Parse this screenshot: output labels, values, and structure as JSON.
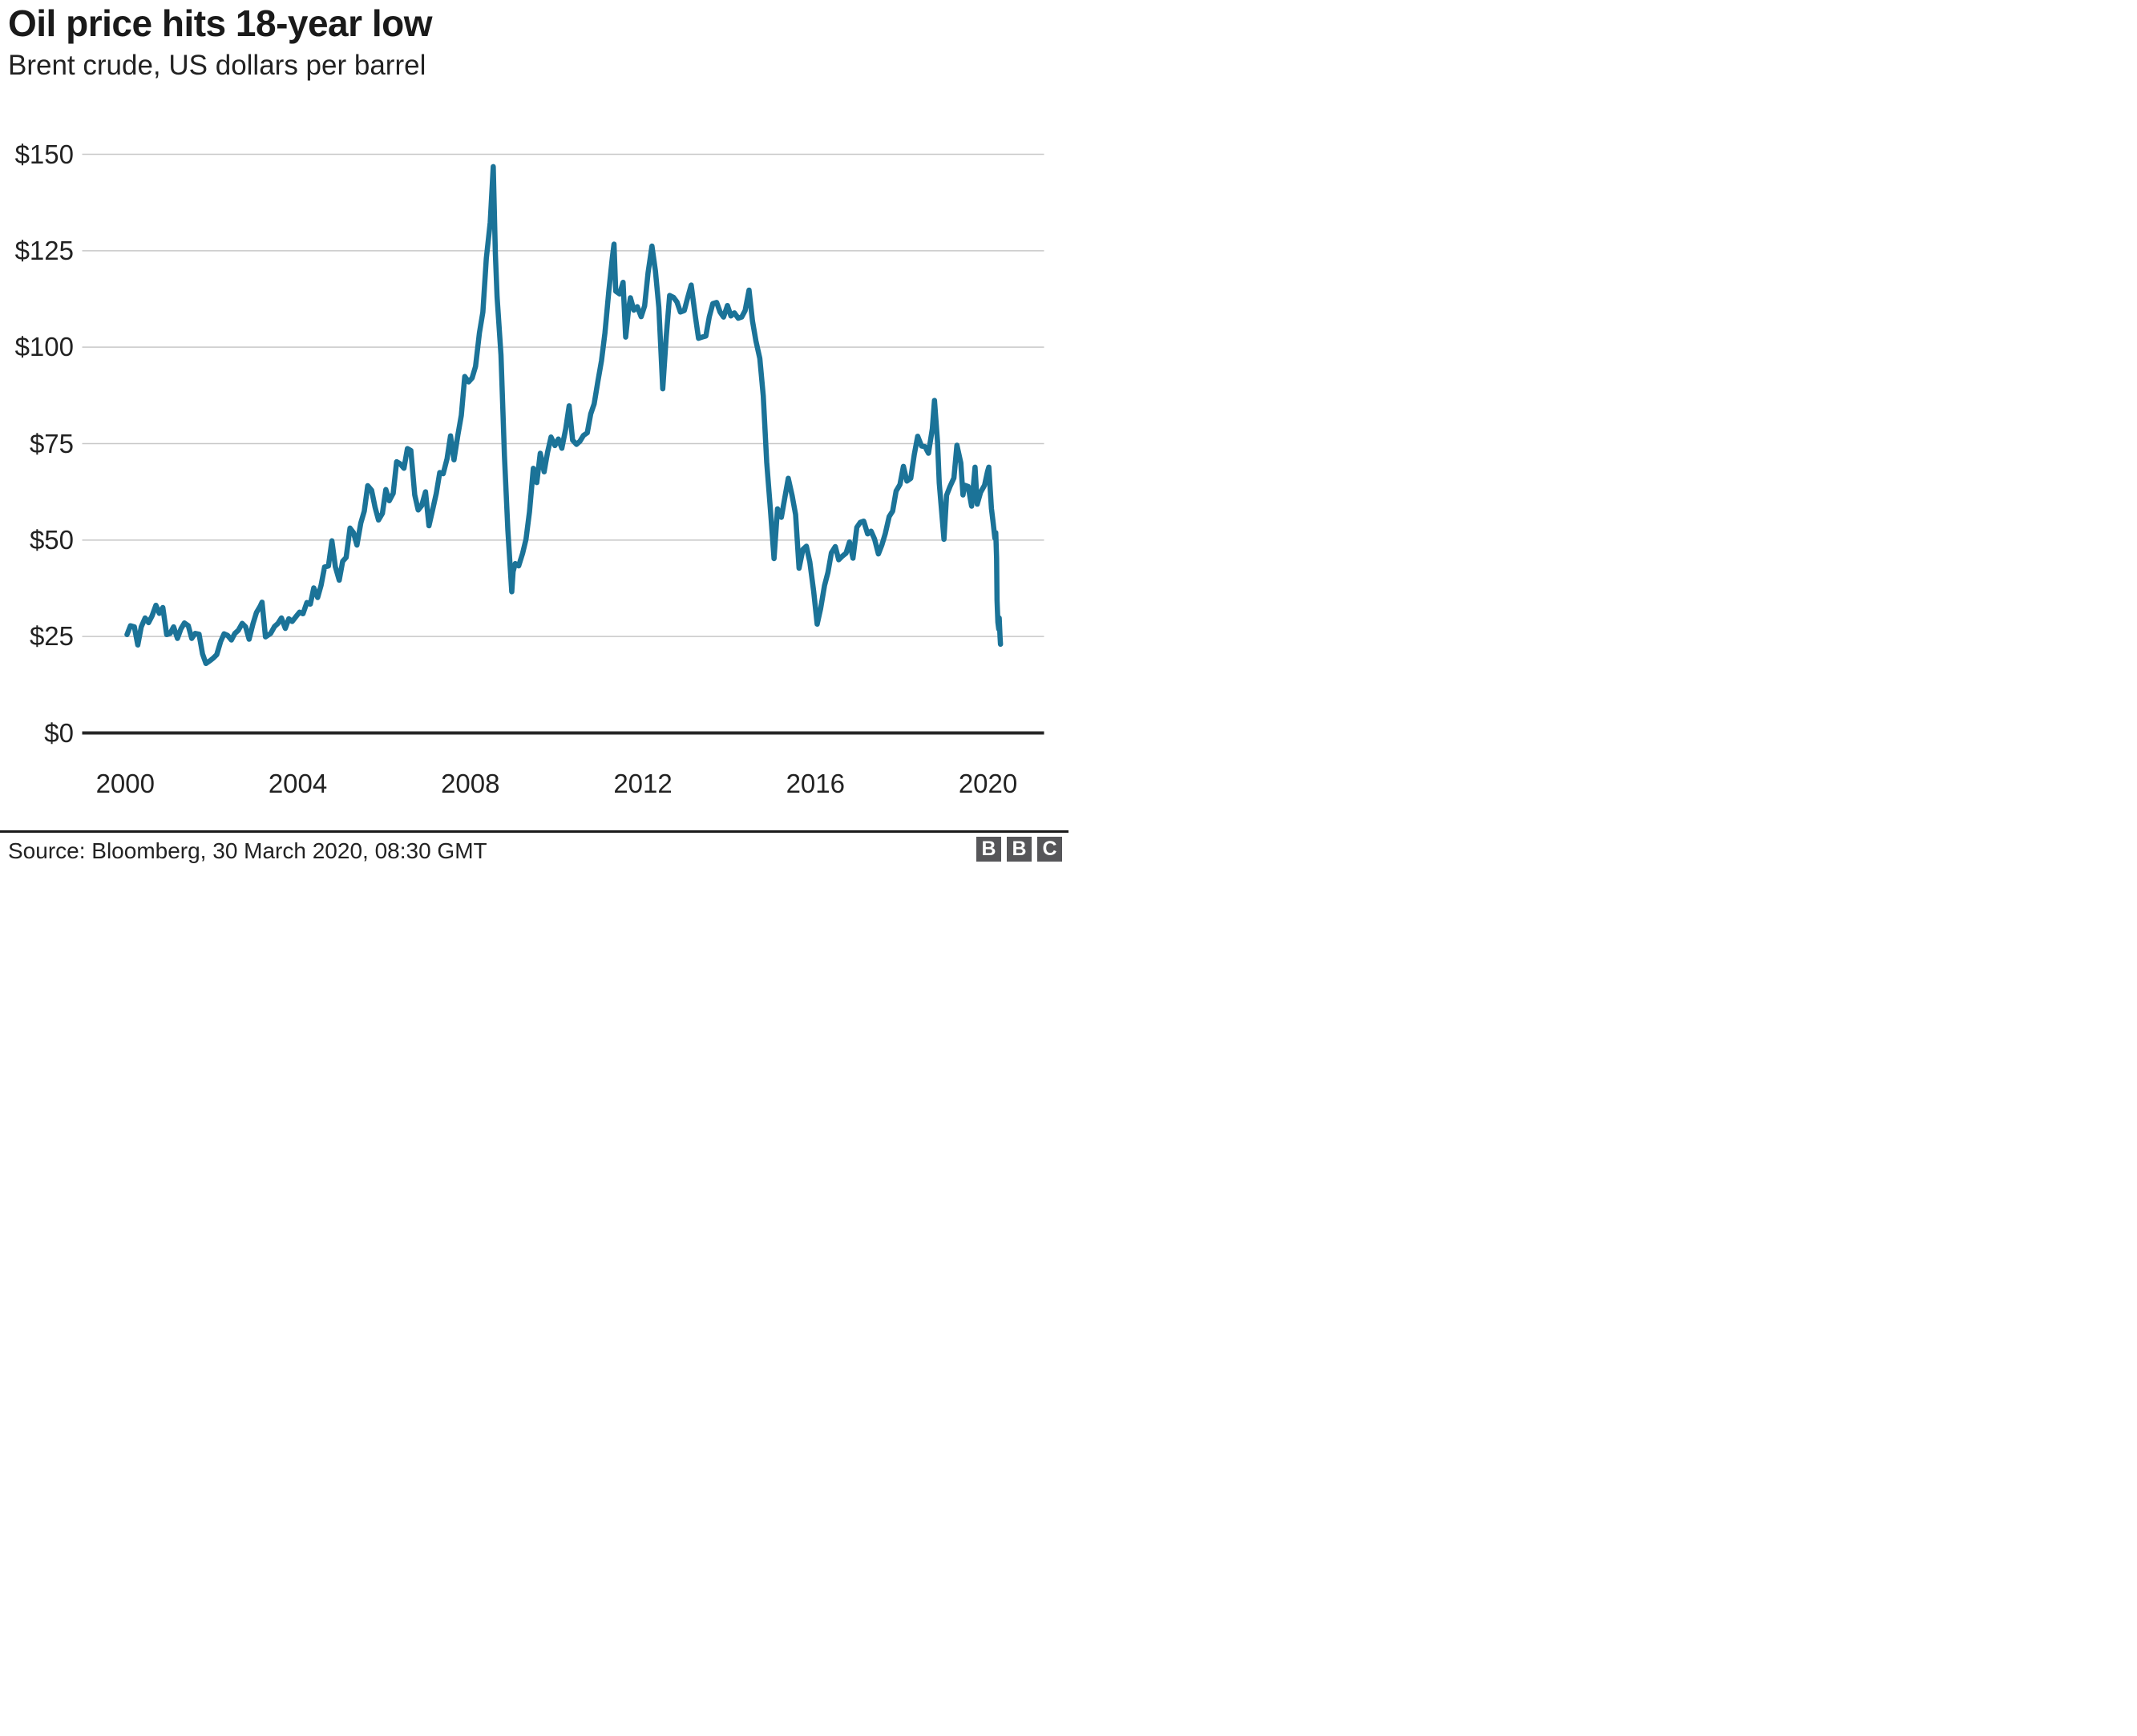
{
  "header": {
    "title": "Oil price hits 18-year low",
    "subtitle": "Brent crude, US dollars per barrel"
  },
  "footer": {
    "source": "Source: Bloomberg, 30 March 2020, 08:30 GMT",
    "logo_letters": [
      "B",
      "B",
      "C"
    ]
  },
  "colors": {
    "line": "#1B7398",
    "grid": "#C8C8C8",
    "axis": "#262626",
    "text": "#222222",
    "logo_gray": "#565659",
    "background": "#FFFFFF"
  },
  "chart_data": {
    "type": "line",
    "title": "Oil price hits 18-year low",
    "subtitle": "Brent crude, US dollars per barrel",
    "series_name": "Brent crude spot price, US dollars per barrel",
    "grid": "horizontal",
    "legend": "none",
    "xlim": [
      1999.0,
      2021.3
    ],
    "ylim": [
      0,
      150
    ],
    "yticks": [
      {
        "label": "$0",
        "value": 0
      },
      {
        "label": "$25",
        "value": 25
      },
      {
        "label": "$50",
        "value": 50
      },
      {
        "label": "$75",
        "value": 75
      },
      {
        "label": "$100",
        "value": 100
      },
      {
        "label": "$125",
        "value": 125
      },
      {
        "label": "$150",
        "value": 150
      }
    ],
    "xticks": [
      {
        "label": "2000",
        "value": 2000
      },
      {
        "label": "2004",
        "value": 2004
      },
      {
        "label": "2008",
        "value": 2008
      },
      {
        "label": "2012",
        "value": 2012
      },
      {
        "label": "2016",
        "value": 2016
      },
      {
        "label": "2020",
        "value": 2020
      }
    ],
    "points": [
      [
        2000.04,
        25.5
      ],
      [
        2000.12,
        27.8
      ],
      [
        2000.21,
        27.5
      ],
      [
        2000.29,
        22.8
      ],
      [
        2000.37,
        27.5
      ],
      [
        2000.46,
        29.8
      ],
      [
        2000.54,
        28.6
      ],
      [
        2000.62,
        30.3
      ],
      [
        2000.71,
        33.1
      ],
      [
        2000.79,
        31.0
      ],
      [
        2000.87,
        32.5
      ],
      [
        2000.96,
        25.5
      ],
      [
        2001.04,
        25.8
      ],
      [
        2001.12,
        27.5
      ],
      [
        2001.21,
        24.5
      ],
      [
        2001.29,
        27.0
      ],
      [
        2001.37,
        28.5
      ],
      [
        2001.46,
        27.8
      ],
      [
        2001.54,
        24.5
      ],
      [
        2001.62,
        25.8
      ],
      [
        2001.71,
        25.6
      ],
      [
        2001.79,
        20.5
      ],
      [
        2001.87,
        18.0
      ],
      [
        2001.96,
        18.7
      ],
      [
        2002.04,
        19.4
      ],
      [
        2002.12,
        20.3
      ],
      [
        2002.21,
        23.7
      ],
      [
        2002.29,
        25.7
      ],
      [
        2002.37,
        25.3
      ],
      [
        2002.46,
        24.1
      ],
      [
        2002.54,
        25.8
      ],
      [
        2002.62,
        26.6
      ],
      [
        2002.71,
        28.4
      ],
      [
        2002.79,
        27.5
      ],
      [
        2002.87,
        24.3
      ],
      [
        2002.96,
        28.3
      ],
      [
        2003.04,
        31.2
      ],
      [
        2003.12,
        32.7
      ],
      [
        2003.17,
        33.9
      ],
      [
        2003.25,
        24.9
      ],
      [
        2003.37,
        25.8
      ],
      [
        2003.46,
        27.6
      ],
      [
        2003.54,
        28.4
      ],
      [
        2003.62,
        29.8
      ],
      [
        2003.71,
        27.1
      ],
      [
        2003.79,
        29.6
      ],
      [
        2003.87,
        28.9
      ],
      [
        2003.96,
        30.2
      ],
      [
        2004.04,
        31.3
      ],
      [
        2004.12,
        30.9
      ],
      [
        2004.21,
        33.8
      ],
      [
        2004.29,
        33.4
      ],
      [
        2004.37,
        37.6
      ],
      [
        2004.46,
        35.1
      ],
      [
        2004.54,
        38.3
      ],
      [
        2004.62,
        43.0
      ],
      [
        2004.71,
        43.3
      ],
      [
        2004.79,
        49.8
      ],
      [
        2004.87,
        43.1
      ],
      [
        2004.96,
        39.6
      ],
      [
        2005.04,
        44.5
      ],
      [
        2005.12,
        45.5
      ],
      [
        2005.21,
        53.1
      ],
      [
        2005.29,
        51.9
      ],
      [
        2005.37,
        48.7
      ],
      [
        2005.46,
        54.4
      ],
      [
        2005.54,
        57.5
      ],
      [
        2005.62,
        64.1
      ],
      [
        2005.71,
        62.9
      ],
      [
        2005.79,
        58.5
      ],
      [
        2005.87,
        55.2
      ],
      [
        2005.96,
        56.9
      ],
      [
        2006.04,
        63.1
      ],
      [
        2006.12,
        60.2
      ],
      [
        2006.21,
        62.1
      ],
      [
        2006.29,
        70.3
      ],
      [
        2006.37,
        69.8
      ],
      [
        2006.46,
        68.6
      ],
      [
        2006.54,
        73.7
      ],
      [
        2006.62,
        73.2
      ],
      [
        2006.71,
        61.7
      ],
      [
        2006.79,
        57.8
      ],
      [
        2006.87,
        58.9
      ],
      [
        2006.96,
        62.5
      ],
      [
        2007.04,
        53.7
      ],
      [
        2007.12,
        57.6
      ],
      [
        2007.21,
        62.1
      ],
      [
        2007.29,
        67.5
      ],
      [
        2007.37,
        67.2
      ],
      [
        2007.46,
        71.1
      ],
      [
        2007.54,
        77.0
      ],
      [
        2007.62,
        70.8
      ],
      [
        2007.71,
        77.2
      ],
      [
        2007.79,
        82.3
      ],
      [
        2007.87,
        92.4
      ],
      [
        2007.96,
        91.0
      ],
      [
        2008.04,
        92.0
      ],
      [
        2008.12,
        95.0
      ],
      [
        2008.21,
        103.7
      ],
      [
        2008.29,
        109.1
      ],
      [
        2008.37,
        123.0
      ],
      [
        2008.46,
        132.3
      ],
      [
        2008.53,
        146.8
      ],
      [
        2008.58,
        124.2
      ],
      [
        2008.62,
        113.0
      ],
      [
        2008.71,
        98.0
      ],
      [
        2008.79,
        71.9
      ],
      [
        2008.87,
        52.5
      ],
      [
        2008.96,
        36.6
      ],
      [
        2008.99,
        41.8
      ],
      [
        2009.04,
        43.9
      ],
      [
        2009.12,
        43.3
      ],
      [
        2009.21,
        46.5
      ],
      [
        2009.29,
        50.2
      ],
      [
        2009.37,
        57.3
      ],
      [
        2009.46,
        68.6
      ],
      [
        2009.54,
        64.9
      ],
      [
        2009.62,
        72.5
      ],
      [
        2009.71,
        67.7
      ],
      [
        2009.79,
        72.8
      ],
      [
        2009.87,
        76.7
      ],
      [
        2009.96,
        74.5
      ],
      [
        2010.04,
        76.2
      ],
      [
        2010.12,
        73.8
      ],
      [
        2010.21,
        78.8
      ],
      [
        2010.29,
        84.8
      ],
      [
        2010.37,
        75.9
      ],
      [
        2010.46,
        74.8
      ],
      [
        2010.54,
        75.6
      ],
      [
        2010.62,
        77.1
      ],
      [
        2010.71,
        77.8
      ],
      [
        2010.79,
        82.7
      ],
      [
        2010.87,
        85.3
      ],
      [
        2010.96,
        91.4
      ],
      [
        2011.04,
        96.5
      ],
      [
        2011.12,
        103.7
      ],
      [
        2011.21,
        114.6
      ],
      [
        2011.29,
        123.1
      ],
      [
        2011.33,
        126.7
      ],
      [
        2011.37,
        114.5
      ],
      [
        2011.46,
        113.8
      ],
      [
        2011.54,
        116.8
      ],
      [
        2011.6,
        102.6
      ],
      [
        2011.67,
        110.1
      ],
      [
        2011.71,
        112.8
      ],
      [
        2011.79,
        109.6
      ],
      [
        2011.87,
        110.5
      ],
      [
        2011.96,
        107.9
      ],
      [
        2012.04,
        110.7
      ],
      [
        2012.12,
        119.3
      ],
      [
        2012.21,
        126.2
      ],
      [
        2012.29,
        119.8
      ],
      [
        2012.37,
        110.3
      ],
      [
        2012.46,
        89.2
      ],
      [
        2012.54,
        102.6
      ],
      [
        2012.62,
        113.4
      ],
      [
        2012.71,
        112.9
      ],
      [
        2012.79,
        111.7
      ],
      [
        2012.87,
        109.1
      ],
      [
        2012.96,
        109.5
      ],
      [
        2013.04,
        112.9
      ],
      [
        2013.12,
        116.1
      ],
      [
        2013.21,
        108.5
      ],
      [
        2013.29,
        102.3
      ],
      [
        2013.37,
        102.6
      ],
      [
        2013.46,
        102.9
      ],
      [
        2013.54,
        107.9
      ],
      [
        2013.62,
        111.3
      ],
      [
        2013.71,
        111.6
      ],
      [
        2013.79,
        109.1
      ],
      [
        2013.87,
        107.8
      ],
      [
        2013.96,
        110.8
      ],
      [
        2014.04,
        108.1
      ],
      [
        2014.12,
        108.9
      ],
      [
        2014.21,
        107.5
      ],
      [
        2014.29,
        107.8
      ],
      [
        2014.37,
        109.5
      ],
      [
        2014.46,
        114.8
      ],
      [
        2014.54,
        106.8
      ],
      [
        2014.62,
        101.6
      ],
      [
        2014.71,
        97.1
      ],
      [
        2014.79,
        87.4
      ],
      [
        2014.87,
        70.2
      ],
      [
        2014.96,
        57.3
      ],
      [
        2015.04,
        45.2
      ],
      [
        2015.12,
        58.1
      ],
      [
        2015.21,
        55.9
      ],
      [
        2015.29,
        61.0
      ],
      [
        2015.37,
        66.0
      ],
      [
        2015.46,
        61.5
      ],
      [
        2015.54,
        56.6
      ],
      [
        2015.62,
        42.7
      ],
      [
        2015.71,
        47.6
      ],
      [
        2015.79,
        48.4
      ],
      [
        2015.87,
        44.3
      ],
      [
        2015.96,
        36.6
      ],
      [
        2016.04,
        28.2
      ],
      [
        2016.12,
        32.2
      ],
      [
        2016.21,
        38.2
      ],
      [
        2016.29,
        41.6
      ],
      [
        2016.37,
        46.7
      ],
      [
        2016.46,
        48.3
      ],
      [
        2016.54,
        44.9
      ],
      [
        2016.62,
        45.8
      ],
      [
        2016.71,
        46.6
      ],
      [
        2016.79,
        49.5
      ],
      [
        2016.87,
        45.3
      ],
      [
        2016.96,
        53.3
      ],
      [
        2017.04,
        54.6
      ],
      [
        2017.12,
        54.9
      ],
      [
        2017.21,
        51.6
      ],
      [
        2017.29,
        52.3
      ],
      [
        2017.37,
        50.3
      ],
      [
        2017.46,
        46.4
      ],
      [
        2017.54,
        48.7
      ],
      [
        2017.62,
        51.7
      ],
      [
        2017.71,
        56.1
      ],
      [
        2017.79,
        57.5
      ],
      [
        2017.87,
        62.7
      ],
      [
        2017.96,
        64.4
      ],
      [
        2018.04,
        69.1
      ],
      [
        2018.12,
        65.3
      ],
      [
        2018.21,
        66.0
      ],
      [
        2018.29,
        72.1
      ],
      [
        2018.37,
        76.9
      ],
      [
        2018.46,
        74.4
      ],
      [
        2018.54,
        74.2
      ],
      [
        2018.62,
        72.5
      ],
      [
        2018.71,
        78.9
      ],
      [
        2018.76,
        86.2
      ],
      [
        2018.83,
        75.5
      ],
      [
        2018.87,
        64.8
      ],
      [
        2018.98,
        50.2
      ],
      [
        2019.04,
        61.6
      ],
      [
        2019.12,
        63.9
      ],
      [
        2019.21,
        66.1
      ],
      [
        2019.28,
        74.6
      ],
      [
        2019.37,
        70.0
      ],
      [
        2019.42,
        61.7
      ],
      [
        2019.46,
        64.2
      ],
      [
        2019.54,
        63.9
      ],
      [
        2019.62,
        58.8
      ],
      [
        2019.7,
        68.9
      ],
      [
        2019.75,
        59.3
      ],
      [
        2019.83,
        62.4
      ],
      [
        2019.92,
        64.2
      ],
      [
        2019.99,
        67.8
      ],
      [
        2020.02,
        68.9
      ],
      [
        2020.08,
        58.2
      ],
      [
        2020.12,
        54.5
      ],
      [
        2020.16,
        50.5
      ],
      [
        2020.18,
        51.9
      ],
      [
        2020.2,
        45.3
      ],
      [
        2020.21,
        34.4
      ],
      [
        2020.23,
        28.7
      ],
      [
        2020.25,
        26.9
      ],
      [
        2020.26,
        29.8
      ],
      [
        2020.28,
        24.9
      ],
      [
        2020.29,
        23.0
      ]
    ]
  }
}
